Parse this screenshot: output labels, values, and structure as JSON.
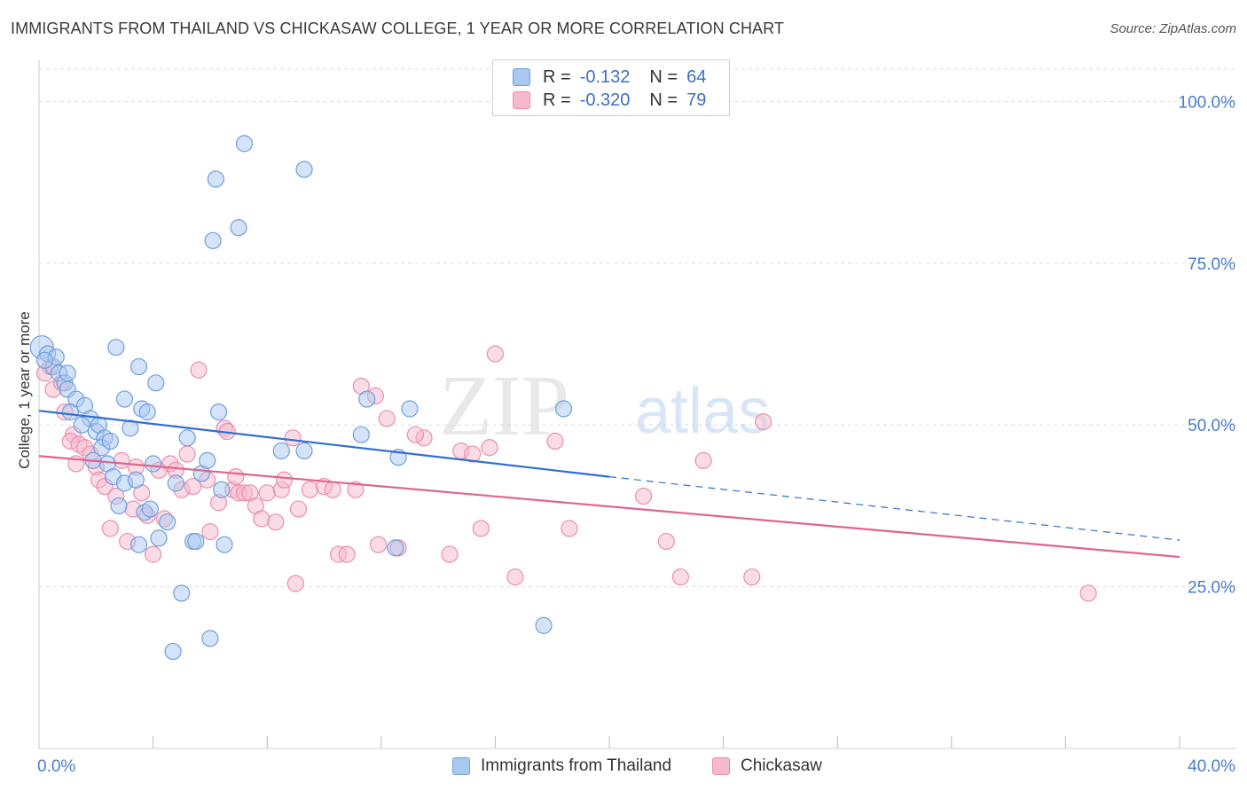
{
  "title": "IMMIGRANTS FROM THAILAND VS CHICKASAW COLLEGE, 1 YEAR OR MORE CORRELATION CHART",
  "source": "Source: ZipAtlas.com",
  "watermark": {
    "zip": "ZIP",
    "atlas": "atlas"
  },
  "legend_top": {
    "rows": [
      {
        "r_label": "R =",
        "r_value": "-0.132",
        "n_label": "N =",
        "n_value": "64"
      },
      {
        "r_label": "R =",
        "r_value": "-0.320",
        "n_label": "N =",
        "n_value": "79"
      }
    ]
  },
  "legend_bottom": {
    "items": [
      "Immigrants from Thailand",
      "Chickasaw"
    ]
  },
  "colors": {
    "blue_fill": "#a9c8f0",
    "blue_stroke": "#6f9fdc",
    "blue_line": "#2f6fd0",
    "pink_fill": "#f7b8cb",
    "pink_stroke": "#ea8fab",
    "pink_line": "#e0638f",
    "axis_text": "#4a7cc9",
    "grid": "#dddddd"
  },
  "chart_data": {
    "type": "scatter",
    "title": "IMMIGRANTS FROM THAILAND VS CHICKASAW COLLEGE, 1 YEAR OR MORE CORRELATION CHART",
    "xlabel": "",
    "ylabel": "College, 1 year or more",
    "xlim": [
      0,
      40
    ],
    "ylim": [
      0,
      105
    ],
    "x_tick_labels": [
      "0.0%",
      "40.0%"
    ],
    "y_tick_labels": [
      "25.0%",
      "50.0%",
      "75.0%",
      "100.0%"
    ],
    "y_ticks": [
      25,
      50,
      75,
      100
    ],
    "x_minor_ticks": [
      4,
      8,
      12,
      16,
      20,
      24,
      28,
      32,
      36,
      40
    ],
    "grid": true,
    "legend_position": "top-center",
    "series": [
      {
        "name": "Immigrants from Thailand",
        "r": -0.132,
        "n": 64,
        "trend": {
          "x0": 0,
          "y0": 52.2,
          "x1": 20,
          "y1": 42.0,
          "dash_to_x": 40,
          "dash_to_y": 32.2
        },
        "points": [
          [
            0.1,
            62.0
          ],
          [
            0.3,
            61.0
          ],
          [
            0.5,
            59.0
          ],
          [
            0.6,
            60.5
          ],
          [
            0.7,
            58.0
          ],
          [
            0.9,
            56.5
          ],
          [
            1.0,
            55.5
          ],
          [
            1.3,
            54.0
          ],
          [
            1.1,
            52.0
          ],
          [
            1.6,
            53.0
          ],
          [
            1.8,
            51.0
          ],
          [
            1.5,
            50.0
          ],
          [
            2.0,
            49.0
          ],
          [
            2.1,
            50.0
          ],
          [
            2.3,
            48.0
          ],
          [
            2.2,
            46.5
          ],
          [
            2.4,
            44.0
          ],
          [
            2.6,
            42.0
          ],
          [
            2.8,
            37.5
          ],
          [
            3.0,
            54.0
          ],
          [
            3.2,
            49.5
          ],
          [
            3.0,
            41.0
          ],
          [
            2.7,
            62.0
          ],
          [
            3.5,
            59.0
          ],
          [
            3.6,
            52.5
          ],
          [
            3.8,
            52.0
          ],
          [
            4.1,
            56.5
          ],
          [
            3.4,
            41.5
          ],
          [
            3.7,
            36.5
          ],
          [
            4.0,
            44.0
          ],
          [
            3.5,
            31.5
          ],
          [
            3.9,
            37.0
          ],
          [
            4.2,
            32.5
          ],
          [
            4.5,
            35.0
          ],
          [
            4.8,
            41.0
          ],
          [
            5.0,
            24.0
          ],
          [
            5.2,
            48.0
          ],
          [
            5.4,
            32.0
          ],
          [
            5.5,
            32.0
          ],
          [
            5.7,
            42.5
          ],
          [
            5.9,
            44.5
          ],
          [
            6.3,
            52.0
          ],
          [
            6.4,
            40.0
          ],
          [
            6.5,
            31.5
          ],
          [
            6.1,
            78.5
          ],
          [
            6.2,
            88.0
          ],
          [
            7.0,
            80.5
          ],
          [
            7.2,
            93.5
          ],
          [
            4.7,
            15.0
          ],
          [
            6.0,
            17.0
          ],
          [
            9.3,
            89.5
          ],
          [
            8.5,
            46.0
          ],
          [
            9.3,
            46.0
          ],
          [
            11.3,
            48.5
          ],
          [
            11.5,
            54.0
          ],
          [
            12.6,
            45.0
          ],
          [
            13.0,
            52.5
          ],
          [
            12.5,
            31.0
          ],
          [
            18.4,
            52.5
          ],
          [
            17.7,
            19.0
          ],
          [
            1.9,
            44.5
          ],
          [
            2.5,
            47.5
          ],
          [
            1.0,
            58.0
          ],
          [
            0.2,
            60.0
          ]
        ],
        "sizes_note": "first point is larger"
      },
      {
        "name": "Chickasaw",
        "r": -0.32,
        "n": 79,
        "trend": {
          "x0": 0,
          "y0": 45.2,
          "x1": 40,
          "y1": 29.6
        },
        "points": [
          [
            0.2,
            58.0
          ],
          [
            0.5,
            55.5
          ],
          [
            0.8,
            56.5
          ],
          [
            0.9,
            52.0
          ],
          [
            1.2,
            48.5
          ],
          [
            1.1,
            47.5
          ],
          [
            1.4,
            47.0
          ],
          [
            1.6,
            46.5
          ],
          [
            1.8,
            45.5
          ],
          [
            2.0,
            43.5
          ],
          [
            2.1,
            41.5
          ],
          [
            2.3,
            40.5
          ],
          [
            2.5,
            34.0
          ],
          [
            2.7,
            39.0
          ],
          [
            2.9,
            44.5
          ],
          [
            3.1,
            32.0
          ],
          [
            3.3,
            37.0
          ],
          [
            3.6,
            39.5
          ],
          [
            3.8,
            36.0
          ],
          [
            4.0,
            30.0
          ],
          [
            4.2,
            43.0
          ],
          [
            4.4,
            35.5
          ],
          [
            4.6,
            44.0
          ],
          [
            4.8,
            43.0
          ],
          [
            5.0,
            40.0
          ],
          [
            5.2,
            45.5
          ],
          [
            5.4,
            40.5
          ],
          [
            5.6,
            58.5
          ],
          [
            5.9,
            41.5
          ],
          [
            6.0,
            33.5
          ],
          [
            6.3,
            38.0
          ],
          [
            6.5,
            49.5
          ],
          [
            6.6,
            49.0
          ],
          [
            6.8,
            40.0
          ],
          [
            7.0,
            39.5
          ],
          [
            7.2,
            39.5
          ],
          [
            7.4,
            39.5
          ],
          [
            7.6,
            37.5
          ],
          [
            7.8,
            35.5
          ],
          [
            8.0,
            39.5
          ],
          [
            8.3,
            35.0
          ],
          [
            8.5,
            40.0
          ],
          [
            8.6,
            41.5
          ],
          [
            8.9,
            48.0
          ],
          [
            9.1,
            37.0
          ],
          [
            9.5,
            40.0
          ],
          [
            10.0,
            40.5
          ],
          [
            10.3,
            40.0
          ],
          [
            10.5,
            30.0
          ],
          [
            10.8,
            30.0
          ],
          [
            11.1,
            40.0
          ],
          [
            11.3,
            56.0
          ],
          [
            11.8,
            54.5
          ],
          [
            12.2,
            51.0
          ],
          [
            12.6,
            31.0
          ],
          [
            13.5,
            48.0
          ],
          [
            13.2,
            48.5
          ],
          [
            14.4,
            30.0
          ],
          [
            14.8,
            46.0
          ],
          [
            15.2,
            45.5
          ],
          [
            15.5,
            34.0
          ],
          [
            15.8,
            46.5
          ],
          [
            16.0,
            61.0
          ],
          [
            16.7,
            26.5
          ],
          [
            18.1,
            47.5
          ],
          [
            18.6,
            34.0
          ],
          [
            21.2,
            39.0
          ],
          [
            22.0,
            32.0
          ],
          [
            22.5,
            26.5
          ],
          [
            23.3,
            44.5
          ],
          [
            25.0,
            26.5
          ],
          [
            25.4,
            50.5
          ],
          [
            36.8,
            24.0
          ],
          [
            11.9,
            31.5
          ],
          [
            9.0,
            25.5
          ],
          [
            6.9,
            42.0
          ],
          [
            3.4,
            43.5
          ],
          [
            1.3,
            44.0
          ],
          [
            0.4,
            59.0
          ]
        ]
      }
    ]
  }
}
